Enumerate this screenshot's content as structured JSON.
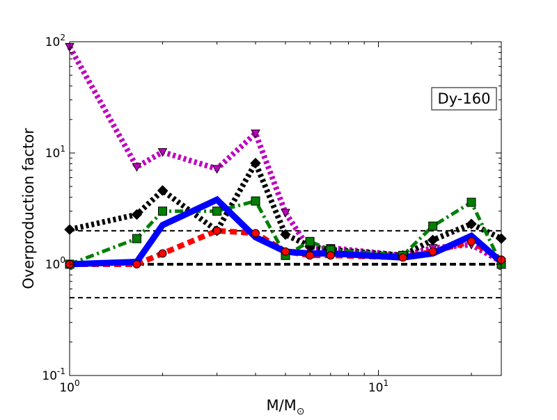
{
  "chart_data": {
    "type": "line",
    "title": "",
    "annotation": "Dy-160",
    "xlabel": {
      "main": "M/M",
      "subscript": "⊙"
    },
    "ylabel": "Overproduction factor",
    "xscale": "log",
    "yscale": "log",
    "xlim": [
      1,
      25
    ],
    "ylim": [
      0.1,
      100
    ],
    "x_ticks": [
      {
        "value": 1,
        "base": "10",
        "exp": "0"
      },
      {
        "value": 10,
        "base": "10",
        "exp": "1"
      }
    ],
    "y_ticks": [
      {
        "value": 0.1,
        "base": "10",
        "exp": "-1"
      },
      {
        "value": 1,
        "base": "10",
        "exp": "0"
      },
      {
        "value": 10,
        "base": "10",
        "exp": "1"
      },
      {
        "value": 100,
        "base": "10",
        "exp": "2"
      }
    ],
    "grid": false,
    "legend": "none",
    "reference_lines": [
      {
        "y": 2.0,
        "style": "dashed",
        "weight": "thin"
      },
      {
        "y": 1.0,
        "style": "dashed",
        "weight": "thick"
      },
      {
        "y": 0.5,
        "style": "dashed",
        "weight": "thin"
      }
    ],
    "series": [
      {
        "color": "#bf00bf",
        "linestyle": "dotted",
        "marker": "triangle-down",
        "x": [
          1,
          1.65,
          2,
          3,
          4,
          5,
          6,
          7,
          12,
          15,
          20,
          25
        ],
        "y": [
          90,
          7.5,
          10.2,
          7.2,
          15,
          2.9,
          1.35,
          1.4,
          1.2,
          1.4,
          1.5,
          1.05
        ]
      },
      {
        "color": "#000000",
        "linestyle": "dotted",
        "marker": "diamond",
        "x": [
          1,
          1.65,
          2,
          3,
          4,
          5,
          6,
          7,
          12,
          15,
          20,
          25
        ],
        "y": [
          2.05,
          2.8,
          4.6,
          2.0,
          8.1,
          1.85,
          1.45,
          1.35,
          1.2,
          1.65,
          2.3,
          1.7
        ]
      },
      {
        "color": "#007f00",
        "linestyle": "dashdot",
        "marker": "square",
        "x": [
          1,
          1.65,
          2,
          3,
          4,
          5,
          6,
          7,
          12,
          15,
          20,
          25
        ],
        "y": [
          1.0,
          1.7,
          3.0,
          3.0,
          3.7,
          1.2,
          1.6,
          1.35,
          1.2,
          2.2,
          3.6,
          1.0
        ]
      },
      {
        "color": "#ff0000",
        "linestyle": "dashed",
        "marker": "circle",
        "x": [
          1,
          1.65,
          2,
          3,
          4,
          5,
          6,
          7,
          12,
          15,
          20,
          25
        ],
        "y": [
          1.0,
          1.0,
          1.25,
          2.0,
          1.9,
          1.3,
          1.2,
          1.2,
          1.15,
          1.3,
          1.6,
          1.1
        ]
      },
      {
        "color": "#0000ff",
        "linestyle": "solid",
        "marker": "none",
        "x": [
          1,
          1.65,
          2,
          3,
          4,
          5,
          6,
          7,
          12,
          15,
          20,
          25
        ],
        "y": [
          1.0,
          1.05,
          2.25,
          3.8,
          1.75,
          1.3,
          1.25,
          1.25,
          1.15,
          1.25,
          1.8,
          1.05
        ]
      }
    ]
  }
}
